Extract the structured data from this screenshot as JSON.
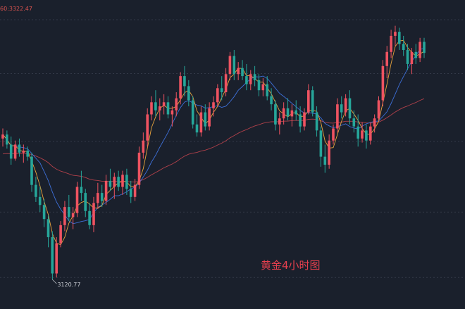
{
  "chart_data": {
    "type": "candlestick",
    "title": "黄金4小时图",
    "indicator_label": "60:3322.47",
    "low_label": "3120.77",
    "ylim": [
      3095,
      3390
    ],
    "grid": true,
    "colors": {
      "up": "#ef5361",
      "down": "#26a69a",
      "ma_fast": "#e8a33d",
      "ma_mid": "#3d6fd8",
      "ma_slow": "#b0404a",
      "grid": "#3a4150",
      "text": "#c9ccd3"
    },
    "candles": [
      [
        3258,
        3268,
        3250,
        3262
      ],
      [
        3262,
        3266,
        3248,
        3252
      ],
      [
        3252,
        3260,
        3232,
        3238
      ],
      [
        3238,
        3256,
        3236,
        3252
      ],
      [
        3252,
        3258,
        3240,
        3244
      ],
      [
        3244,
        3252,
        3234,
        3246
      ],
      [
        3246,
        3250,
        3236,
        3240
      ],
      [
        3240,
        3244,
        3205,
        3212
      ],
      [
        3212,
        3220,
        3195,
        3200
      ],
      [
        3200,
        3210,
        3185,
        3192
      ],
      [
        3192,
        3198,
        3170,
        3178
      ],
      [
        3178,
        3182,
        3150,
        3160
      ],
      [
        3160,
        3166,
        3118,
        3124
      ],
      [
        3124,
        3160,
        3120,
        3154
      ],
      [
        3154,
        3176,
        3150,
        3172
      ],
      [
        3172,
        3196,
        3166,
        3190
      ],
      [
        3190,
        3202,
        3176,
        3180
      ],
      [
        3180,
        3190,
        3168,
        3184
      ],
      [
        3184,
        3215,
        3180,
        3210
      ],
      [
        3210,
        3226,
        3196,
        3204
      ],
      [
        3204,
        3208,
        3180,
        3186
      ],
      [
        3186,
        3194,
        3168,
        3172
      ],
      [
        3172,
        3200,
        3165,
        3194
      ],
      [
        3194,
        3214,
        3188,
        3204
      ],
      [
        3204,
        3212,
        3190,
        3196
      ],
      [
        3196,
        3222,
        3192,
        3216
      ],
      [
        3216,
        3228,
        3206,
        3210
      ],
      [
        3210,
        3224,
        3198,
        3220
      ],
      [
        3220,
        3226,
        3206,
        3210
      ],
      [
        3210,
        3226,
        3202,
        3222
      ],
      [
        3222,
        3228,
        3202,
        3208
      ],
      [
        3208,
        3216,
        3194,
        3200
      ],
      [
        3200,
        3218,
        3196,
        3212
      ],
      [
        3212,
        3250,
        3208,
        3244
      ],
      [
        3244,
        3264,
        3238,
        3256
      ],
      [
        3256,
        3288,
        3250,
        3282
      ],
      [
        3282,
        3300,
        3276,
        3294
      ],
      [
        3294,
        3306,
        3280,
        3286
      ],
      [
        3286,
        3298,
        3276,
        3290
      ],
      [
        3290,
        3302,
        3282,
        3294
      ],
      [
        3294,
        3300,
        3278,
        3282
      ],
      [
        3282,
        3290,
        3270,
        3286
      ],
      [
        3286,
        3304,
        3280,
        3298
      ],
      [
        3298,
        3324,
        3292,
        3320
      ],
      [
        3320,
        3330,
        3300,
        3310
      ],
      [
        3310,
        3316,
        3290,
        3296
      ],
      [
        3296,
        3300,
        3268,
        3272
      ],
      [
        3272,
        3282,
        3260,
        3264
      ],
      [
        3264,
        3290,
        3260,
        3284
      ],
      [
        3284,
        3292,
        3266,
        3270
      ],
      [
        3270,
        3294,
        3266,
        3288
      ],
      [
        3288,
        3300,
        3280,
        3294
      ],
      [
        3294,
        3312,
        3290,
        3308
      ],
      [
        3308,
        3320,
        3296,
        3304
      ],
      [
        3304,
        3328,
        3300,
        3322
      ],
      [
        3322,
        3344,
        3316,
        3340
      ],
      [
        3340,
        3346,
        3316,
        3322
      ],
      [
        3322,
        3334,
        3316,
        3328
      ],
      [
        3328,
        3336,
        3316,
        3320
      ],
      [
        3320,
        3332,
        3306,
        3312
      ],
      [
        3312,
        3326,
        3306,
        3322
      ],
      [
        3322,
        3330,
        3310,
        3316
      ],
      [
        3316,
        3322,
        3300,
        3306
      ],
      [
        3306,
        3318,
        3300,
        3312
      ],
      [
        3312,
        3320,
        3296,
        3300
      ],
      [
        3300,
        3308,
        3286,
        3292
      ],
      [
        3292,
        3296,
        3266,
        3272
      ],
      [
        3272,
        3284,
        3262,
        3278
      ],
      [
        3278,
        3294,
        3272,
        3288
      ],
      [
        3288,
        3298,
        3276,
        3280
      ],
      [
        3280,
        3292,
        3270,
        3286
      ],
      [
        3286,
        3296,
        3276,
        3282
      ],
      [
        3282,
        3290,
        3264,
        3270
      ],
      [
        3270,
        3288,
        3266,
        3284
      ],
      [
        3284,
        3312,
        3282,
        3306
      ],
      [
        3306,
        3310,
        3280,
        3284
      ],
      [
        3284,
        3290,
        3260,
        3266
      ],
      [
        3266,
        3270,
        3230,
        3240
      ],
      [
        3240,
        3252,
        3224,
        3232
      ],
      [
        3232,
        3262,
        3228,
        3256
      ],
      [
        3256,
        3272,
        3252,
        3268
      ],
      [
        3268,
        3298,
        3264,
        3292
      ],
      [
        3292,
        3300,
        3278,
        3284
      ],
      [
        3284,
        3302,
        3280,
        3298
      ],
      [
        3298,
        3306,
        3272,
        3278
      ],
      [
        3278,
        3286,
        3264,
        3270
      ],
      [
        3270,
        3282,
        3250,
        3258
      ],
      [
        3258,
        3274,
        3254,
        3266
      ],
      [
        3266,
        3272,
        3248,
        3256
      ],
      [
        3256,
        3274,
        3252,
        3270
      ],
      [
        3270,
        3282,
        3264,
        3278
      ],
      [
        3278,
        3300,
        3276,
        3296
      ],
      [
        3296,
        3336,
        3290,
        3330
      ],
      [
        3330,
        3350,
        3318,
        3344
      ],
      [
        3344,
        3366,
        3338,
        3360
      ],
      [
        3360,
        3370,
        3350,
        3364
      ],
      [
        3364,
        3368,
        3346,
        3352
      ],
      [
        3352,
        3360,
        3340,
        3346
      ],
      [
        3346,
        3352,
        3326,
        3332
      ],
      [
        3332,
        3348,
        3322,
        3344
      ],
      [
        3344,
        3352,
        3332,
        3338
      ],
      [
        3338,
        3358,
        3334,
        3354
      ],
      [
        3354,
        3358,
        3338,
        3343
      ]
    ]
  }
}
